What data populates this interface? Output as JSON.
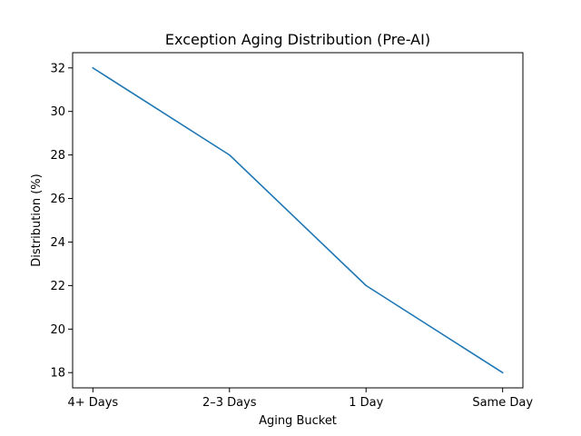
{
  "chart_data": {
    "type": "line",
    "title": "Exception Aging Distribution (Pre-AI)",
    "xlabel": "Aging Bucket",
    "ylabel": "Distribution (%)",
    "categories": [
      "4+ Days",
      "2–3 Days",
      "1 Day",
      "Same Day"
    ],
    "series": [
      {
        "values": [
          32,
          28,
          22,
          18
        ],
        "color": "#1f77b4"
      }
    ],
    "ylim": [
      17.3,
      32.7
    ],
    "yticks": [
      18,
      20,
      22,
      24,
      26,
      28,
      30,
      32
    ],
    "grid": false,
    "legend": "none"
  }
}
